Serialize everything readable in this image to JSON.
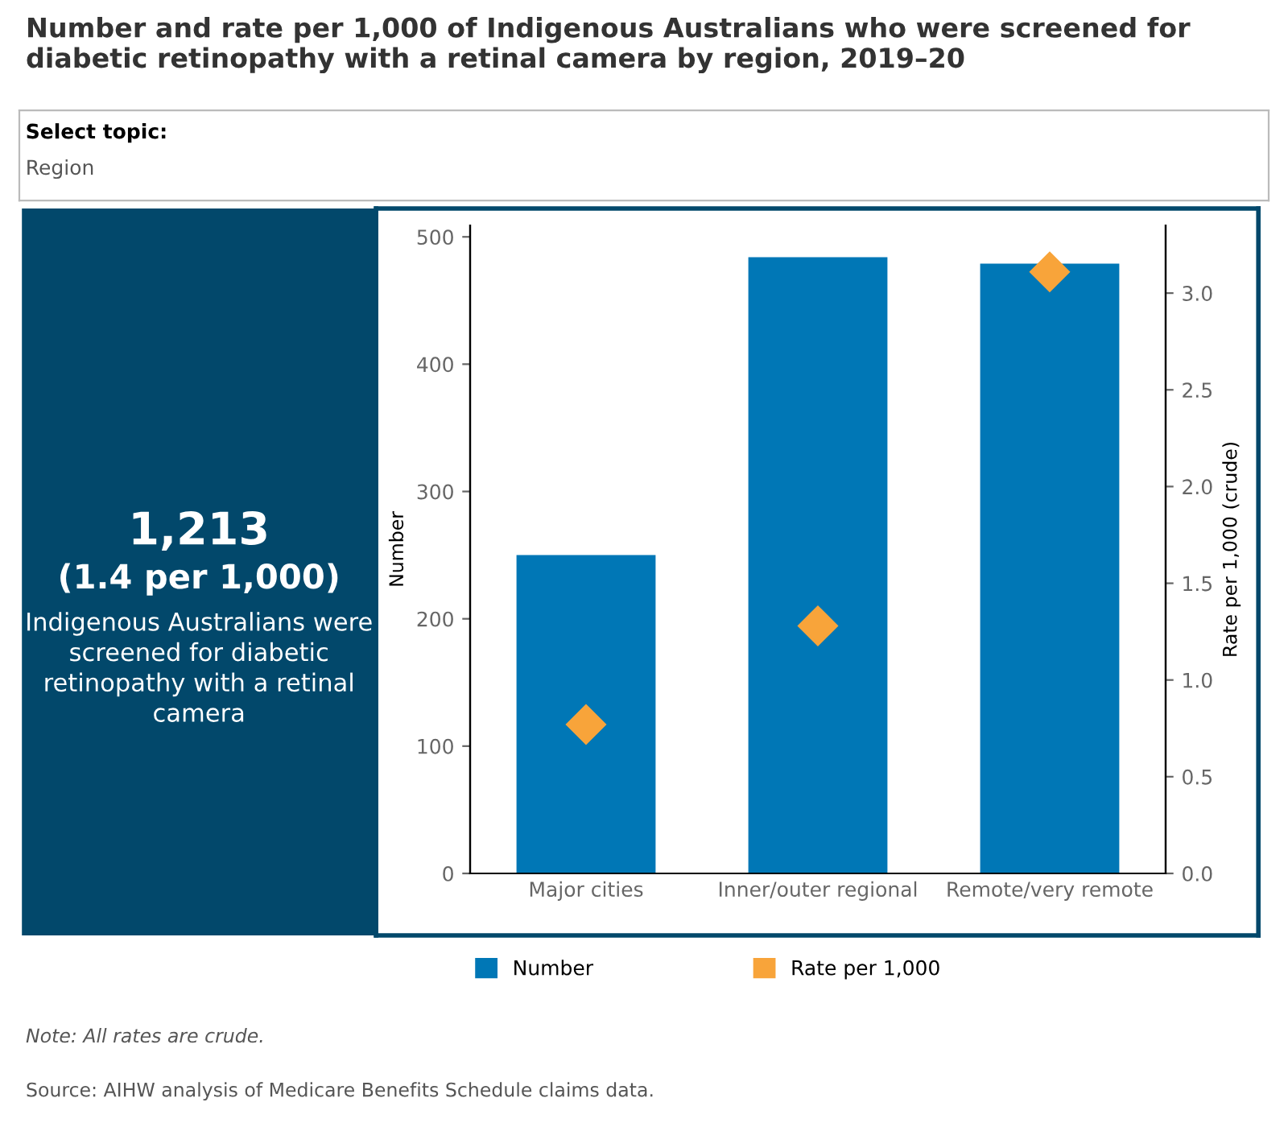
{
  "chart_data": [
    {
      "type": "other",
      "annotations": [
        "Select topic:",
        "Region",
        "1,213",
        "(1.4 per 1,000)",
        "Indigenous Australians were screened for diabetic retinopathy with a retinal camera"
      ]
    },
    {
      "type": "bar",
      "title": "Number and rate per 1,000 of Indigenous Australians who were screened for diabetic retinopathy with a retinal camera by region, 2019–20",
      "categories": [
        "Major cities",
        "Inner/outer regional",
        "Remote/very remote"
      ],
      "series": [
        {
          "name": "Number",
          "color": "#0077b6",
          "values": [
            250,
            484,
            479
          ]
        },
        {
          "name": "Rate per 1,000",
          "type": "scatter",
          "axis": "y2",
          "marker": "diamond",
          "color": "#f8a43a",
          "values": [
            0.77,
            1.28,
            3.11
          ]
        }
      ],
      "ylabel": "Number",
      "y2label": "Rate per 1,000 (crude)",
      "ylim": [
        0,
        509
      ],
      "yticks": [
        0,
        100,
        200,
        300,
        400,
        500
      ],
      "y2lim": [
        0,
        3.35
      ],
      "y2ticks": [
        {
          "value": 0,
          "label": "0.0"
        },
        {
          "value": 0.5,
          "label": "0.5"
        },
        {
          "value": 1,
          "label": "1.0"
        },
        {
          "value": 1.5,
          "label": "1.5"
        },
        {
          "value": 2,
          "label": "2.0"
        },
        {
          "value": 2.5,
          "label": "2.5"
        },
        {
          "value": 3,
          "label": "3.0"
        }
      ],
      "legend": "bottom",
      "grid": false,
      "annotations": [
        "Note: All rates are crude.",
        "Source: AIHW analysis of Medicare Benefits Schedule claims data."
      ]
    }
  ]
}
